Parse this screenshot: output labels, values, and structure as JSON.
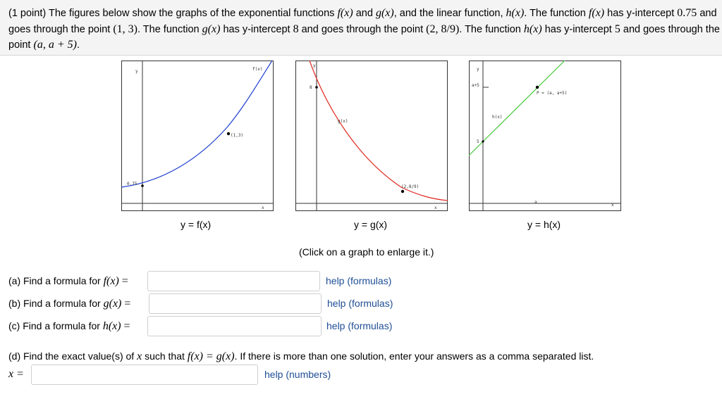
{
  "problem": {
    "points": "(1 point)",
    "seg1": "The figures below show the graphs of the exponential functions",
    "fx": "f(x)",
    "and1": "and",
    "gx": "g(x)",
    "seg2": ", and the linear function,",
    "hx": "h(x)",
    "seg3": ". The function",
    "seg4": "has y-intercept",
    "f_intercept": "0.75",
    "seg5": "and goes through the point",
    "f_point": "(1, 3)",
    "seg6": ". The function",
    "seg7": "has y-intercept",
    "g_intercept": "8",
    "seg8": "and goes through the point",
    "g_point": "(2, 8/9)",
    "seg9": ". The function",
    "seg10": "has y-intercept",
    "h_intercept": "5",
    "seg11": "and goes through the point",
    "h_point": "(a, a + 5)",
    "seg12": "."
  },
  "graphs": [
    {
      "caption": "y = f(x)",
      "y_label": "y",
      "x_label": "x",
      "curve_label": "f(x)",
      "intercept_label": "0.75",
      "point_label": "(1,3)",
      "color": "#1e3fcf"
    },
    {
      "caption": "y = g(x)",
      "y_label": "y",
      "x_label": "x",
      "curve_label": "g(x)",
      "intercept_label": "8",
      "point_label": "(2,8/9)",
      "color": "#e0281e"
    },
    {
      "caption": "y = h(x)",
      "y_label": "y",
      "x_label": "x",
      "curve_label": "h(x)",
      "intercept_label": "5",
      "a_label": "a",
      "a5_label": "a+5",
      "point_label": "P = (a, a+5)",
      "color": "#45c83a"
    }
  ],
  "click_hint": "(Click on a graph to enlarge it.)",
  "questions": [
    {
      "prefix": "(a) Find a formula for",
      "func": "f(x)",
      "eq": "=",
      "help": "help (formulas)",
      "value": ""
    },
    {
      "prefix": "(b) Find a formula for",
      "func": "g(x)",
      "eq": "=",
      "help": "help (formulas)",
      "value": ""
    },
    {
      "prefix": "(c) Find a formula for",
      "func": "h(x)",
      "eq": "=",
      "help": "help (formulas)",
      "value": ""
    }
  ],
  "part_d": {
    "seg1": "(d) Find the exact value(s) of",
    "var": "x",
    "seg2": "such that",
    "eqn": "f(x) = g(x)",
    "seg3": ". If there is more than one solution, enter your answers as a comma separated list.",
    "answer_label": "x =",
    "help": "help (numbers)",
    "value": ""
  }
}
